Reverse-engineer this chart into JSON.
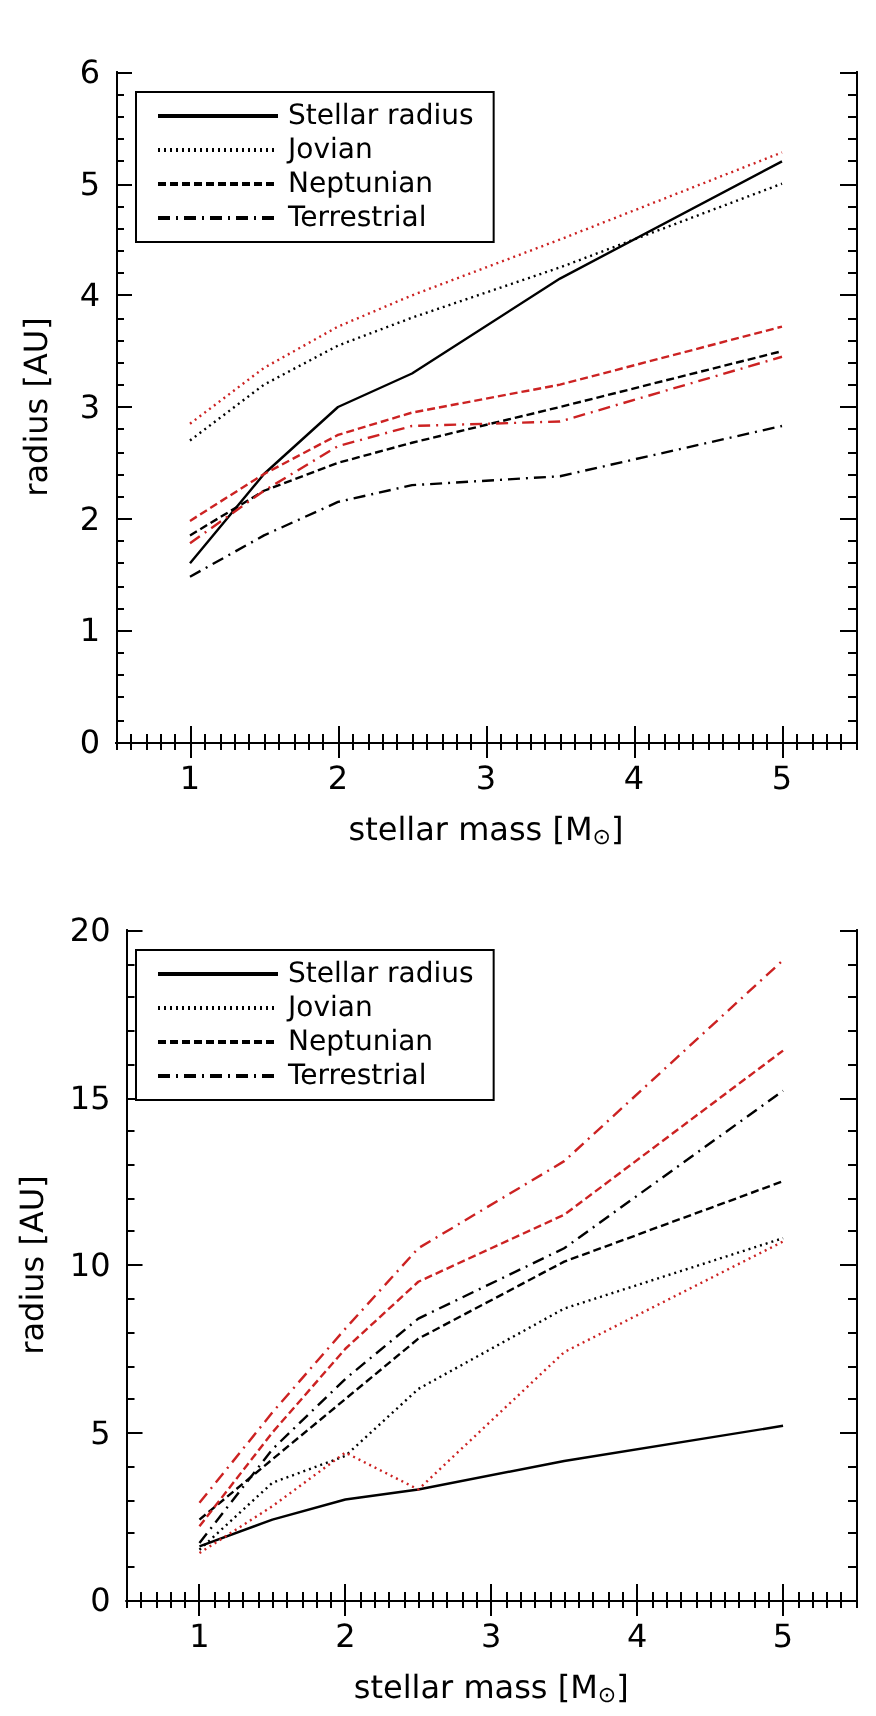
{
  "chart_data": [
    {
      "type": "line",
      "xlabel": "stellar mass [M$_{⊙}$]",
      "ylabel": "radius [AU]",
      "x": [
        1,
        1.5,
        2,
        2.5,
        3.5,
        5
      ],
      "xlim": [
        0.5,
        5.5
      ],
      "ylim": [
        0,
        6
      ],
      "xticks": [
        1,
        2,
        3,
        4,
        5
      ],
      "yticks": [
        0,
        1,
        2,
        3,
        4,
        5,
        6
      ],
      "grid": false,
      "legend": "top left",
      "marker": "none",
      "series": [
        {
          "name": "Stellar radius",
          "color": "#000000",
          "line_style": "solid",
          "values": [
            1.6,
            2.4,
            3.0,
            3.3,
            4.15,
            5.2
          ]
        },
        {
          "name": "Jovian",
          "color": "#000000",
          "line_style": "dotted",
          "values": [
            2.7,
            3.2,
            3.55,
            3.8,
            4.25,
            5.0
          ]
        },
        {
          "name": "Neptunian",
          "color": "#000000",
          "line_style": "dashed",
          "values": [
            1.85,
            2.25,
            2.5,
            2.68,
            3.0,
            3.5
          ]
        },
        {
          "name": "Terrestrial",
          "color": "#000000",
          "line_style": "dashdot",
          "values": [
            1.48,
            1.85,
            2.15,
            2.3,
            2.38,
            2.83
          ]
        },
        {
          "color": "#cc2222",
          "line_style": "dotted",
          "values": [
            2.85,
            3.35,
            3.72,
            4.0,
            4.5,
            5.28
          ]
        },
        {
          "color": "#cc2222",
          "line_style": "dashed",
          "values": [
            1.98,
            2.4,
            2.75,
            2.95,
            3.2,
            3.72
          ]
        },
        {
          "color": "#cc2222",
          "line_style": "dashdot",
          "values": [
            1.78,
            2.25,
            2.65,
            2.83,
            2.87,
            3.45
          ]
        }
      ]
    },
    {
      "type": "line",
      "xlabel": "stellar mass [M$_{⊙}$]",
      "ylabel": "radius [AU]",
      "x": [
        1,
        1.5,
        2,
        2.5,
        3.5,
        5
      ],
      "xlim": [
        0.5,
        5.5
      ],
      "ylim": [
        0,
        20
      ],
      "xticks": [
        1,
        2,
        3,
        4,
        5
      ],
      "yticks": [
        0,
        5,
        10,
        15,
        20
      ],
      "grid": false,
      "legend": "top left",
      "marker": "none",
      "series": [
        {
          "name": "Stellar radius",
          "color": "#000000",
          "line_style": "solid",
          "values": [
            1.6,
            2.4,
            3.0,
            3.3,
            4.15,
            5.2
          ]
        },
        {
          "name": "Jovian",
          "color": "#000000",
          "line_style": "dotted",
          "values": [
            1.5,
            3.5,
            4.3,
            6.3,
            8.7,
            10.8
          ]
        },
        {
          "name": "Neptunian",
          "color": "#000000",
          "line_style": "dashed",
          "values": [
            2.4,
            4.2,
            6.0,
            7.8,
            10.1,
            12.5
          ]
        },
        {
          "name": "Terrestrial",
          "color": "#000000",
          "line_style": "dashdot",
          "values": [
            1.7,
            4.5,
            6.6,
            8.4,
            10.5,
            15.2
          ]
        },
        {
          "color": "#cc2222",
          "line_style": "dotted",
          "values": [
            1.4,
            2.8,
            4.4,
            3.3,
            7.4,
            10.7
          ]
        },
        {
          "color": "#cc2222",
          "line_style": "dashed",
          "values": [
            2.2,
            5.0,
            7.5,
            9.5,
            11.5,
            16.4
          ]
        },
        {
          "color": "#cc2222",
          "line_style": "dashdot",
          "values": [
            2.9,
            5.6,
            8.1,
            10.5,
            13.1,
            19.1
          ]
        }
      ]
    }
  ]
}
